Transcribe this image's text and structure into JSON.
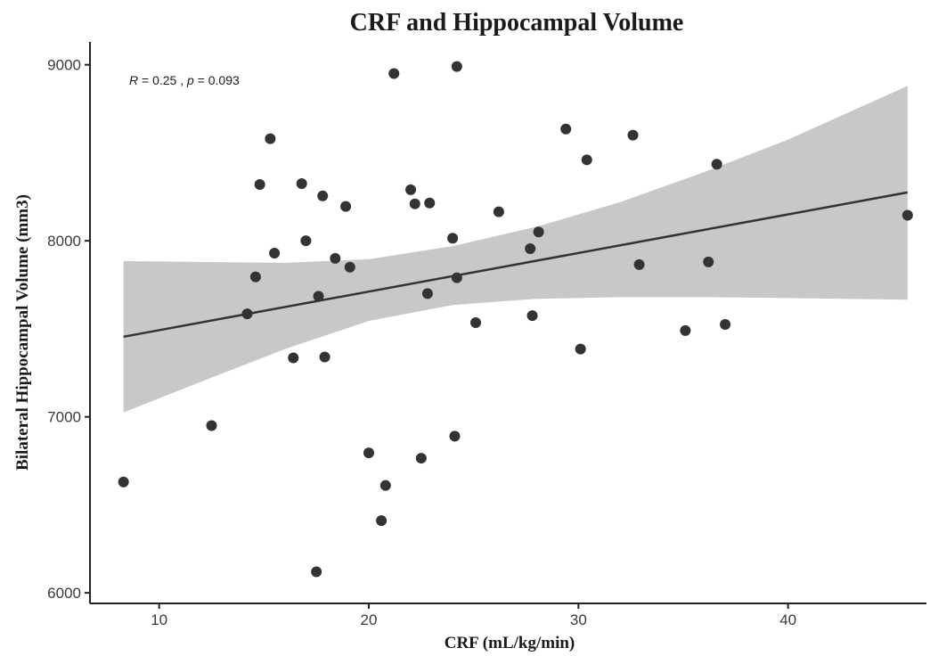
{
  "chart_data": {
    "type": "scatter",
    "title": "CRF and Hippocampal Volume",
    "xlabel": "CRF (mL/kg/min)",
    "ylabel": "Bilateral Hippocampal Volume (mm3)",
    "xlim": [
      6.7,
      46.6
    ],
    "ylim": [
      5940,
      9130
    ],
    "x_ticks": [
      10,
      20,
      30,
      40
    ],
    "y_ticks": [
      6000,
      7000,
      8000,
      9000
    ],
    "grid": false,
    "legend": "none",
    "annotation": {
      "r_symbol": "R",
      "r_text": " = 0.25 , ",
      "p_symbol": "p",
      "p_text": " = 0.093"
    },
    "regression": {
      "x": [
        8.3,
        45.7
      ],
      "y": [
        7455,
        8275
      ],
      "ci_x": [
        8.3,
        12,
        16,
        20,
        24,
        28,
        32,
        36,
        40,
        45.7
      ],
      "ci_lower": [
        7025,
        7200,
        7385,
        7545,
        7635,
        7670,
        7680,
        7680,
        7675,
        7665
      ],
      "ci_upper": [
        7885,
        7880,
        7875,
        7895,
        7970,
        8080,
        8220,
        8390,
        8575,
        8880
      ]
    },
    "points": [
      {
        "x": 8.3,
        "y": 6630
      },
      {
        "x": 12.5,
        "y": 6950
      },
      {
        "x": 14.2,
        "y": 7585
      },
      {
        "x": 14.6,
        "y": 7795
      },
      {
        "x": 14.8,
        "y": 8320
      },
      {
        "x": 15.3,
        "y": 8580
      },
      {
        "x": 15.5,
        "y": 7930
      },
      {
        "x": 16.4,
        "y": 7335
      },
      {
        "x": 16.8,
        "y": 8325
      },
      {
        "x": 17.0,
        "y": 8000
      },
      {
        "x": 17.5,
        "y": 6120
      },
      {
        "x": 17.6,
        "y": 7685
      },
      {
        "x": 17.8,
        "y": 8255
      },
      {
        "x": 17.9,
        "y": 7340
      },
      {
        "x": 18.4,
        "y": 7900
      },
      {
        "x": 18.9,
        "y": 8195
      },
      {
        "x": 19.1,
        "y": 7850
      },
      {
        "x": 20.0,
        "y": 6795
      },
      {
        "x": 20.6,
        "y": 6410
      },
      {
        "x": 20.8,
        "y": 6610
      },
      {
        "x": 21.2,
        "y": 8950
      },
      {
        "x": 22.0,
        "y": 8290
      },
      {
        "x": 22.2,
        "y": 8210
      },
      {
        "x": 22.5,
        "y": 6765
      },
      {
        "x": 22.8,
        "y": 7700
      },
      {
        "x": 22.9,
        "y": 8215
      },
      {
        "x": 24.0,
        "y": 8015
      },
      {
        "x": 24.1,
        "y": 6890
      },
      {
        "x": 24.2,
        "y": 7790
      },
      {
        "x": 24.2,
        "y": 8990
      },
      {
        "x": 25.1,
        "y": 7535
      },
      {
        "x": 26.2,
        "y": 8165
      },
      {
        "x": 27.7,
        "y": 7955
      },
      {
        "x": 27.8,
        "y": 7575
      },
      {
        "x": 28.1,
        "y": 8050
      },
      {
        "x": 29.4,
        "y": 8635
      },
      {
        "x": 30.1,
        "y": 7385
      },
      {
        "x": 30.4,
        "y": 8460
      },
      {
        "x": 32.6,
        "y": 8600
      },
      {
        "x": 32.9,
        "y": 7865
      },
      {
        "x": 35.1,
        "y": 7490
      },
      {
        "x": 36.2,
        "y": 7880
      },
      {
        "x": 36.6,
        "y": 8435
      },
      {
        "x": 37.0,
        "y": 7525
      },
      {
        "x": 45.7,
        "y": 8145
      }
    ],
    "colors": {
      "points": "#333333",
      "line": "#333333",
      "ci_band": "#c8c8c8",
      "axis": "#222222"
    }
  }
}
